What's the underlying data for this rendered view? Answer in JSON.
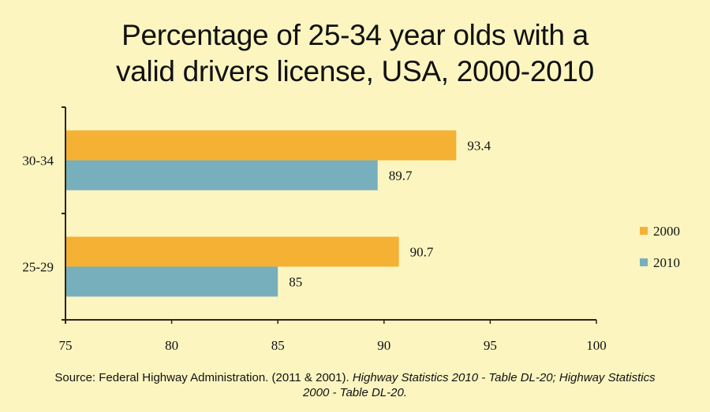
{
  "chart_data": {
    "type": "bar",
    "orientation": "horizontal",
    "title_lines": [
      "Percentage of 25-34 year olds with a",
      "valid drivers license, USA, 2000-2010"
    ],
    "categories": [
      "30-34",
      "25-29"
    ],
    "series": [
      {
        "name": "2000",
        "color": "#f5b133",
        "values": [
          93.4,
          90.7
        ],
        "labels": [
          "93.4",
          "90.7"
        ]
      },
      {
        "name": "2010",
        "color": "#77afbc",
        "values": [
          89.7,
          85
        ],
        "labels": [
          "89.7",
          "85"
        ]
      }
    ],
    "xlabel": "",
    "ylabel": "",
    "xlim": [
      75,
      100
    ],
    "xticks": [
      75,
      80,
      85,
      90,
      95,
      100
    ],
    "xtick_labels": [
      "75",
      "80",
      "85",
      "90",
      "95",
      "100"
    ],
    "grid": false,
    "legend_position": "right",
    "source": {
      "plain": "Source: Federal Highway Administration. (2011 & 2001). ",
      "italic_1": "Highway Statistics 2010 - Table DL-20; Highway Statistics 2000 - Table DL-20."
    }
  }
}
